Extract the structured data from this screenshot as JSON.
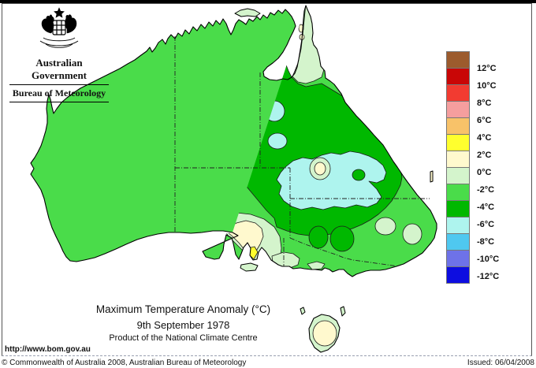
{
  "header": {
    "gov_title": "Australian Government",
    "agency": "Bureau of Meteorology"
  },
  "legend": {
    "unit_labels": [
      "12°C",
      "10°C",
      "8°C",
      "6°C",
      "4°C",
      "2°C",
      "0°C",
      "-2°C",
      "-4°C",
      "-6°C",
      "-8°C",
      "-10°C",
      "-12°C"
    ],
    "colors": [
      "#9C5B2D",
      "#C90606",
      "#F23B31",
      "#F59E9E",
      "#F8C269",
      "#FFFF2E",
      "#FFF9CE",
      "#D4F4CC",
      "#4ADC4A",
      "#00B800",
      "#AEF4EE",
      "#4FC8F0",
      "#6E72E8",
      "#0D0DE0"
    ]
  },
  "map": {
    "title": "Maximum Temperature Anomaly (°C)",
    "date": "9th September 1978",
    "product": "Product of the National Climate Centre",
    "url": "http://www.bom.gov.au",
    "region_colors": {
      "base_minus2_minus4": "#4ADC4A",
      "minus4_minus6": "#00B800",
      "minus6_minus8": "#AEF4EE",
      "minus8_minus10": "#4FC8F0",
      "minus2_0": "#D4F4CC",
      "zero_plus2": "#FFF9CE",
      "plus2_plus4": "#FFFF2E",
      "plus4_plus6": "#F5A85C",
      "plus6_plus8": "#F78F8F"
    }
  },
  "footer": {
    "copyright": "© Commonwealth of Australia 2008, Australian Bureau of Meteorology",
    "issued": "Issued: 06/04/2008"
  }
}
